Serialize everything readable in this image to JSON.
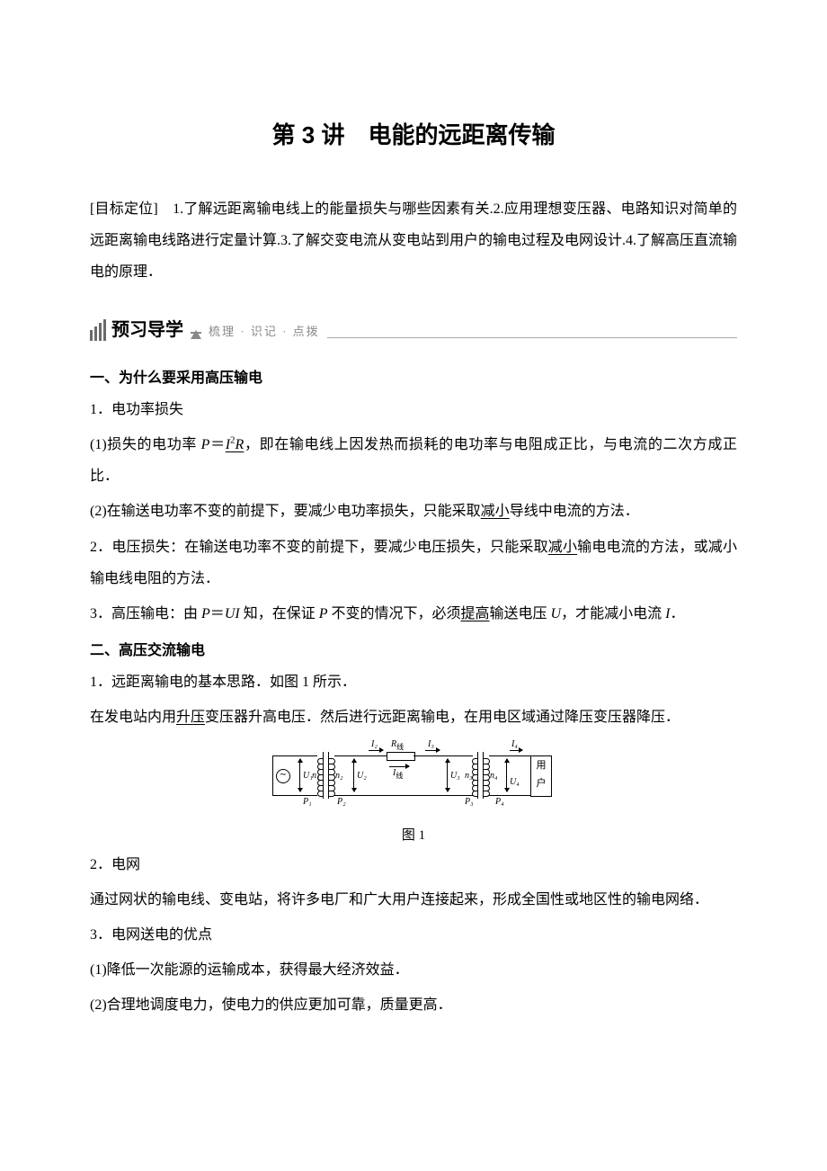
{
  "title": "第 3 讲　电能的远距离传输",
  "objective": {
    "label": "[目标定位]　",
    "text": "1.了解远距离输电线上的能量损失与哪些因素有关.2.应用理想变压器、电路知识对简单的远距离输电线路进行定量计算.3.了解交变电流从变电站到用户的输电过程及电网设计.4.了解高压直流输电的原理．"
  },
  "preview": {
    "title": "预习导学",
    "sub": "梳理 · 识记 · 点拨"
  },
  "s1": {
    "heading": "一、为什么要采用高压输电",
    "p1": "1．电功率损失",
    "p2a": "(1)损失的电功率 ",
    "p2b_italic": "P",
    "p2c": "＝",
    "p2d_underline_html": "<span class='italic'>I</span><sup>2</sup><span class='italic'>R</span>",
    "p2e": "，即在输电线上因发热而损耗的电功率与电阻成正比，与电流的二次方成正比．",
    "p3a": "(2)在输送电功率不变的前提下，要减少电功率损失，只能采取",
    "p3b_underline": "减小",
    "p3c": "导线中电流的方法．",
    "p4a": "2．电压损失：在输送电功率不变的前提下，要减少电压损失，只能采取",
    "p4b_underline": "减小",
    "p4c": "输电电流的方法，或减小输电线电阻的方法．",
    "p5a": "3．高压输电：由 ",
    "p5b_italic": "P",
    "p5c": "＝",
    "p5d_italic": "UI",
    "p5e": " 知，在保证 ",
    "p5f_italic": "P",
    "p5g": " 不变的情况下，必须",
    "p5h_underline": "提高",
    "p5i": "输送电压 ",
    "p5j_italic": "U",
    "p5k": "，才能减小电流 ",
    "p5l_italic": "I",
    "p5m": "．"
  },
  "s2": {
    "heading": "二、高压交流输电",
    "p1": "1．远距离输电的基本思路．如图 1 所示．",
    "p2a": "在发电站内用",
    "p2b_underline": "升压",
    "p2c": "变压器升高电压．然后进行远距离输电，在用电区域通过降压变压器降压．",
    "caption": "图 1",
    "p3": "2．电网",
    "p4": "通过网状的输电线、变电站，将许多电厂和广大用户连接起来，形成全国性或地区性的输电网络．",
    "p5": "3．电网送电的优点",
    "p6": "(1)降低一次能源的运输成本，获得最大经济效益．",
    "p7": "(2)合理地调度电力，使电力的供应更加可靠，质量更高．"
  },
  "diagram": {
    "gen": "∼",
    "U1": "U₁",
    "P1": "P₁",
    "n1": "n₁",
    "n2": "n₂",
    "U2": "U₂",
    "P2": "P₂",
    "I2": "I₂",
    "Rline_label": "R",
    "Rline_sub": "线",
    "Iline": "I",
    "Iline_sub": "线",
    "I3": "I₃",
    "U3": "U₃",
    "n3": "n₃",
    "P3": "P₃",
    "n4": "n₄",
    "U4": "U₄",
    "P4": "P₄",
    "I4": "I₄",
    "load1": "用",
    "load2": "户"
  }
}
